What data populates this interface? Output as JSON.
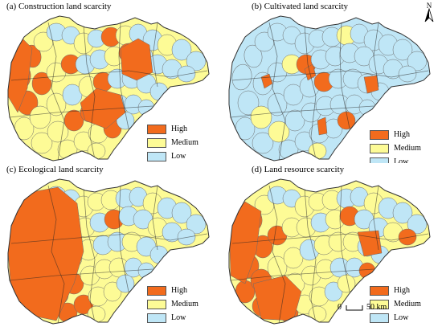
{
  "colors": {
    "high": "#f26b1d",
    "medium": "#fdfb96",
    "low": "#bfe6f6",
    "boundary": "#6b6b6b",
    "thick_boundary": "#222222"
  },
  "legend": {
    "high": "High",
    "medium": "Medium",
    "low": "Low"
  },
  "panels": [
    {
      "title": "(a) Construction land scarcity"
    },
    {
      "title": "(b) Cultivated land scarcity"
    },
    {
      "title": "(c) Ecological land scarcity"
    },
    {
      "title": "(d) Land resource scarcity"
    }
  ],
  "north_arrow": {
    "label": "N"
  },
  "scale_bar": {
    "zero": "0",
    "label": "50 km"
  }
}
